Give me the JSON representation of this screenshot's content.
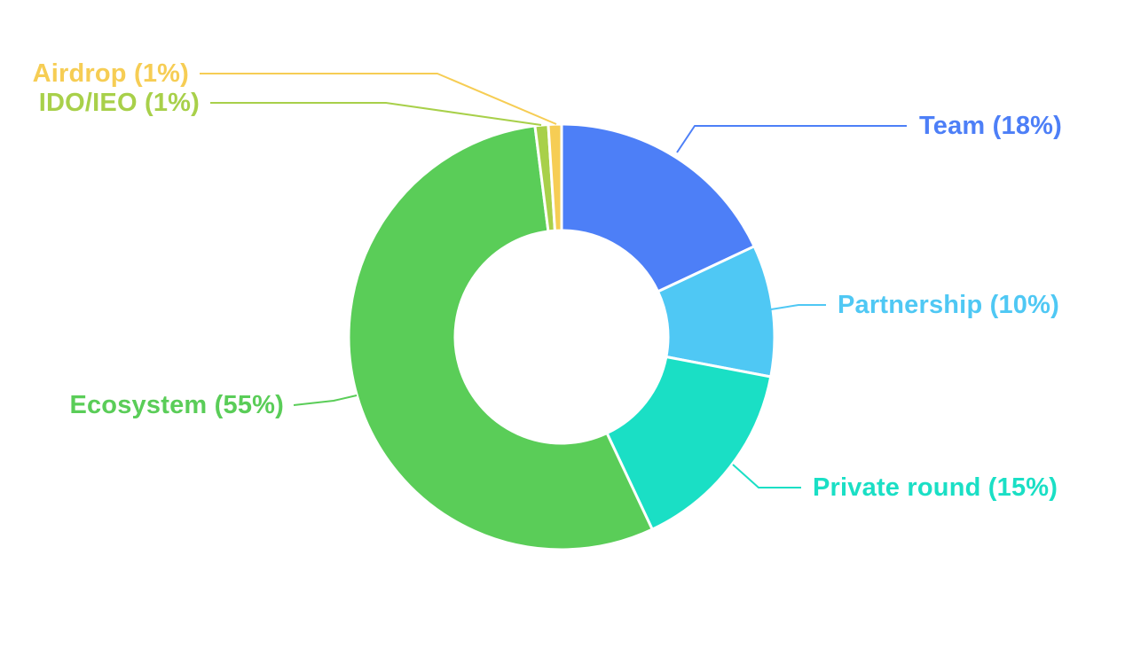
{
  "page": {
    "background_color": "#ffffff"
  },
  "chart_data": {
    "type": "pie",
    "subtype": "donut",
    "title": "",
    "legend_position": "none",
    "grid": false,
    "start_angle_deg": 0,
    "direction": "clockwise",
    "inner_radius_ratio": 0.5,
    "categories": [
      "Team",
      "Partnership",
      "Private round",
      "Ecosystem",
      "IDO/IEO",
      "Airdrop"
    ],
    "values": [
      18,
      10,
      15,
      55,
      1,
      1
    ],
    "segments": [
      {
        "name": "Team",
        "value": 18,
        "label": "Team (18%)",
        "color": "#4D7FF7"
      },
      {
        "name": "Partnership",
        "value": 10,
        "label": "Partnership (10%)",
        "color": "#4FC8F4"
      },
      {
        "name": "Private round",
        "value": 15,
        "label": "Private round (15%)",
        "color": "#1ADFC5"
      },
      {
        "name": "Ecosystem",
        "value": 55,
        "label": "Ecosystem (55%)",
        "color": "#5ACD58"
      },
      {
        "name": "IDO/IEO",
        "value": 1,
        "label": "IDO/IEO (1%)",
        "color": "#A8D04A"
      },
      {
        "name": "Airdrop",
        "value": 1,
        "label": "Airdrop (1%)",
        "color": "#F6CD54"
      }
    ]
  }
}
